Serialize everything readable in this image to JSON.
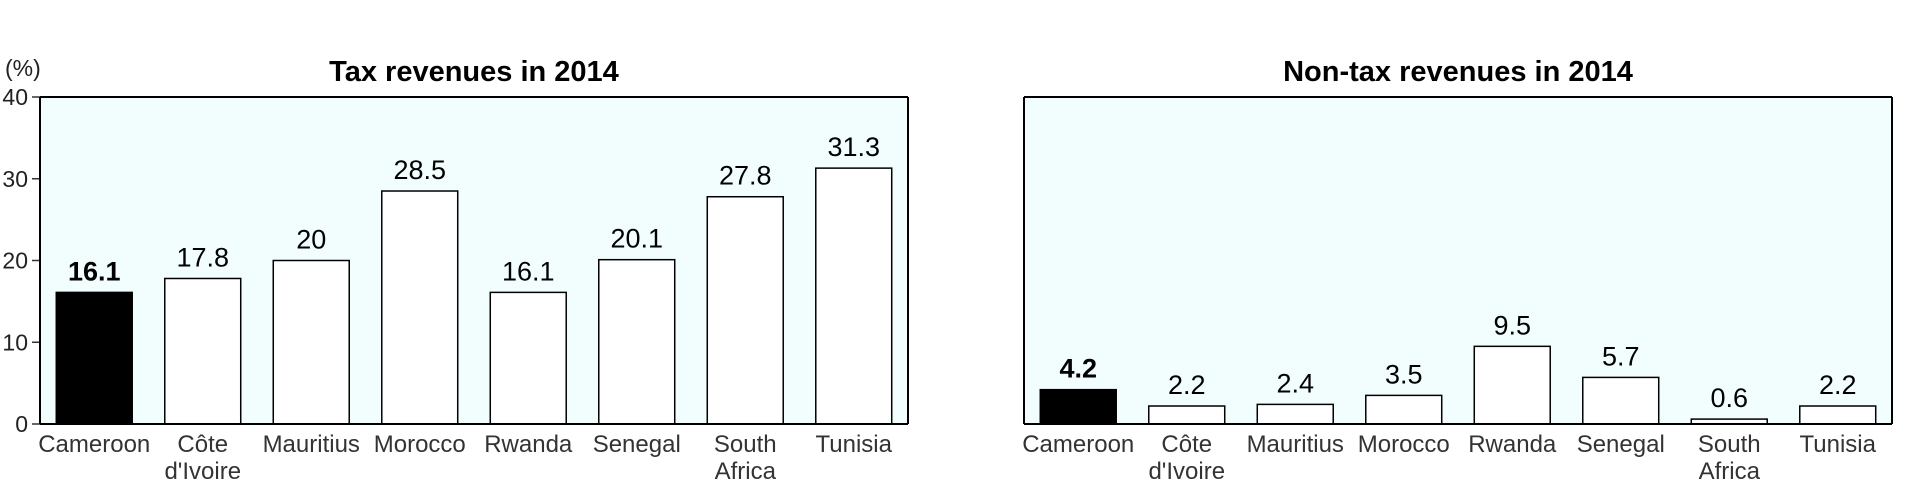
{
  "colors": {
    "plot_background": "#f2fdfd",
    "highlight_bar": "#000000",
    "bar_fill": "#ffffff",
    "bar_stroke": "#000000"
  },
  "y_unit_label": "(%)",
  "chart_data": [
    {
      "type": "bar",
      "title": "Tax revenues in 2014",
      "categories": [
        "Cameroon",
        "Côte d'Ivoire",
        "Mauritius",
        "Morocco",
        "Rwanda",
        "Senegal",
        "South Africa",
        "Tunisia"
      ],
      "values": [
        16.1,
        17.8,
        20,
        28.5,
        16.1,
        20.1,
        27.8,
        31.3
      ],
      "value_labels": [
        "16.1",
        "17.8",
        "20",
        "28.5",
        "16.1",
        "20.1",
        "27.8",
        "31.3"
      ],
      "highlight_index": 0,
      "ylim": [
        0,
        40
      ],
      "yticks": [
        0,
        10,
        20,
        30,
        40
      ],
      "ytick_labels": [
        "0",
        "10",
        "20",
        "30",
        "40"
      ],
      "show_y_axis": true,
      "grid": false
    },
    {
      "type": "bar",
      "title": "Non-tax revenues in 2014",
      "categories": [
        "Cameroon",
        "Côte d'Ivoire",
        "Mauritius",
        "Morocco",
        "Rwanda",
        "Senegal",
        "South Africa",
        "Tunisia"
      ],
      "values": [
        4.2,
        2.2,
        2.4,
        3.5,
        9.5,
        5.7,
        0.6,
        2.2
      ],
      "value_labels": [
        "4.2",
        "2.2",
        "2.4",
        "3.5",
        "9.5",
        "5.7",
        "0.6",
        "2.2"
      ],
      "highlight_index": 0,
      "ylim": [
        0,
        40
      ],
      "show_y_axis": false,
      "grid": false
    }
  ]
}
